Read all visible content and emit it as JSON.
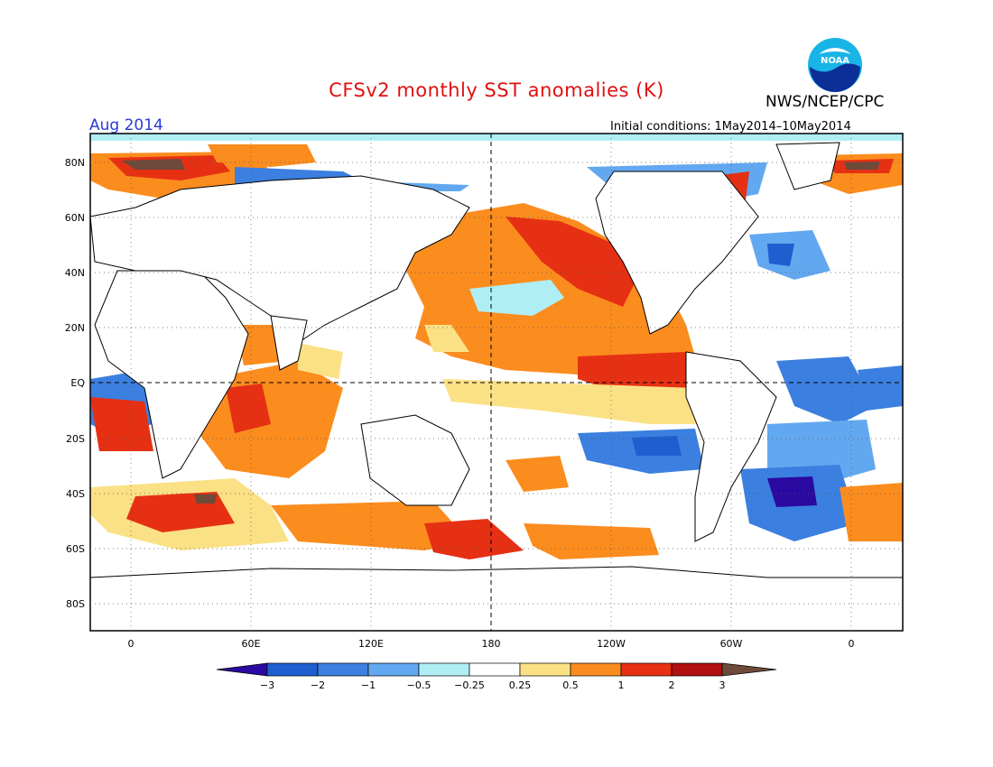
{
  "header": {
    "title": "CFSv2 monthly SST anomalies (K)",
    "agency": "NWS/NCEP/CPC",
    "month": "Aug 2014",
    "initial_conditions": "Initial conditions: 1May2014–10May2014"
  },
  "logo": {
    "text": "NOAA",
    "icon": "noaa-logo-icon"
  },
  "map": {
    "lat_labels": [
      "80N",
      "60N",
      "40N",
      "20N",
      "EQ",
      "20S",
      "40S",
      "60S",
      "80S"
    ],
    "lon_labels": [
      "0",
      "60E",
      "120E",
      "180",
      "120W",
      "60W",
      "0"
    ],
    "projection": "cylindrical equidistant"
  },
  "colorbar": {
    "labels": [
      "−3",
      "−2",
      "−1",
      "−0.5",
      "−0.25",
      "0.25",
      "0.5",
      "1",
      "2",
      "3"
    ],
    "colors": [
      "#2a0aa0",
      "#1e5fd0",
      "#3b7fe0",
      "#62a8f0",
      "#b0eef5",
      "#ffffff",
      "#fbe185",
      "#fb8c1e",
      "#e63013",
      "#b01010",
      "#6e4a3a"
    ]
  },
  "colors": {
    "title": "#e01010",
    "month": "#2a3ad8"
  }
}
